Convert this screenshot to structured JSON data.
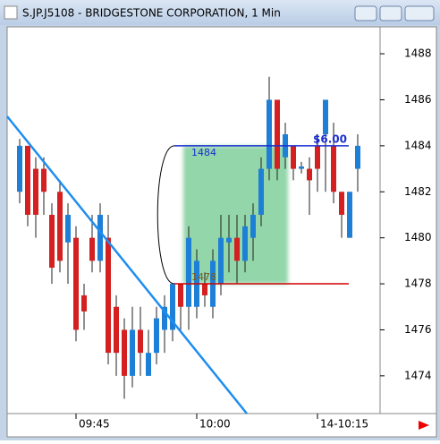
{
  "window": {
    "title": "S.JP.J5108 - BRIDGESTONE CORPORATION, 1 Min"
  },
  "chart_data": {
    "type": "candlestick",
    "categories": [
      null,
      null,
      null,
      null,
      null,
      null,
      null,
      "09:45",
      null,
      null,
      null,
      null,
      null,
      null,
      null,
      null,
      null,
      null,
      null,
      null,
      null,
      null,
      "10:00",
      null,
      null,
      null,
      null,
      null,
      null,
      null,
      null,
      null,
      null,
      null,
      null,
      null,
      null,
      "14-10:15",
      null,
      null,
      null,
      null,
      null
    ],
    "open": [
      1482,
      1484,
      1483,
      1483,
      1481,
      1482,
      1479.8,
      1480,
      1477.5,
      1480,
      1479,
      1480,
      1477,
      1476,
      1474,
      1476,
      1474,
      1475,
      1476,
      1476,
      1478,
      1477,
      1477,
      1478,
      1477,
      1478,
      1479.8,
      1480,
      1479,
      1480,
      1481,
      1483,
      1486,
      1483.5,
      1484,
      1483,
      1483,
      1484,
      1484.5,
      1484,
      1482,
      1480,
      1483
    ],
    "high": [
      1484.3,
      1484,
      1483.5,
      1483.5,
      1481.5,
      1482.5,
      1481.5,
      1480.5,
      1478,
      1481,
      1481.5,
      1481,
      1477.5,
      1476.5,
      1477,
      1477,
      1476,
      1477,
      1477.5,
      1478,
      1478,
      1480.5,
      1479.5,
      1478.5,
      1479.5,
      1481,
      1481,
      1481,
      1481,
      1481.5,
      1483.5,
      1487,
      1486,
      1485,
      1484,
      1483.3,
      1483.5,
      1484.5,
      1486,
      1485,
      1482,
      1482,
      1484.5
    ],
    "low": [
      1481.5,
      1480.5,
      1480,
      1481,
      1478,
      1478.5,
      1478,
      1475.5,
      1476,
      1478.5,
      1478.5,
      1474.5,
      1474,
      1473,
      1473.5,
      1474,
      1474,
      1474.5,
      1475,
      1475.5,
      1476,
      1476,
      1476.5,
      1477,
      1476.5,
      1477.5,
      1478.5,
      1478,
      1478.5,
      1479,
      1480.5,
      1482.5,
      1482.5,
      1483,
      1482.5,
      1482.8,
      1481,
      1482,
      1482,
      1481.5,
      1480,
      1480,
      1482
    ],
    "close": [
      1484,
      1481,
      1481,
      1482,
      1478.7,
      1479,
      1481,
      1476,
      1476.8,
      1479,
      1481,
      1475,
      1475,
      1474,
      1476,
      1475,
      1475,
      1476.5,
      1477,
      1478,
      1477,
      1480,
      1479,
      1477.5,
      1479,
      1480,
      1480,
      1479,
      1480.5,
      1481,
      1483,
      1486,
      1483,
      1484.5,
      1483,
      1483.1,
      1482.5,
      1483,
      1486,
      1482,
      1481,
      1482,
      1484
    ],
    "up_color": "#1e7fd6",
    "down_color": "#d42020",
    "ylim": [
      1472.36,
      1489.17
    ],
    "yticks": [
      1474,
      1476,
      1478,
      1480,
      1482,
      1484,
      1486,
      1488
    ],
    "measure": {
      "high": 1484,
      "low": 1478,
      "change": "$6.00"
    }
  }
}
